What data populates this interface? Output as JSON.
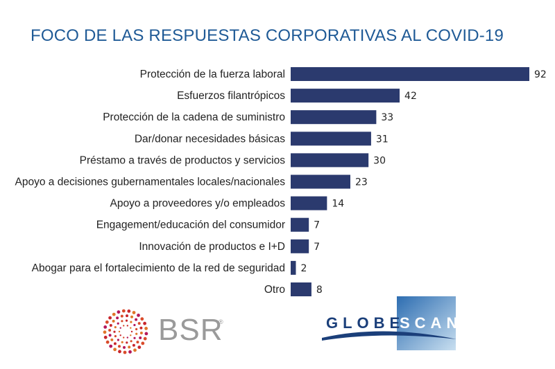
{
  "title": "FOCO DE LAS RESPUESTAS CORPORATIVAS AL COVID-19",
  "colors": {
    "bar": "#2b3a6e",
    "title": "#1f5a96"
  },
  "chart_data": {
    "type": "bar",
    "orientation": "horizontal",
    "categories": [
      "Protección de la fuerza laboral",
      "Esfuerzos filantrópicos",
      "Protección de la cadena de suministro",
      "Dar/donar necesidades básicas",
      "Préstamo a través de productos y servicios",
      "Apoyo a decisiones gubernamentales locales/nacionales",
      "Apoyo a proveedores y/o empleados",
      "Engagement/educación del consumidor",
      "Innovación de productos e I+D",
      "Abogar para el fortalecimiento de la red de seguridad",
      "Otro"
    ],
    "values": [
      92,
      42,
      33,
      31,
      30,
      23,
      14,
      7,
      7,
      2,
      8
    ],
    "xlim": [
      0,
      92
    ],
    "grid": false,
    "legend": "none"
  },
  "logos": {
    "bsr": {
      "text": "BSR",
      "mark": "®"
    },
    "globescan": {
      "left": "GLOBE",
      "right": "SCAN"
    }
  }
}
